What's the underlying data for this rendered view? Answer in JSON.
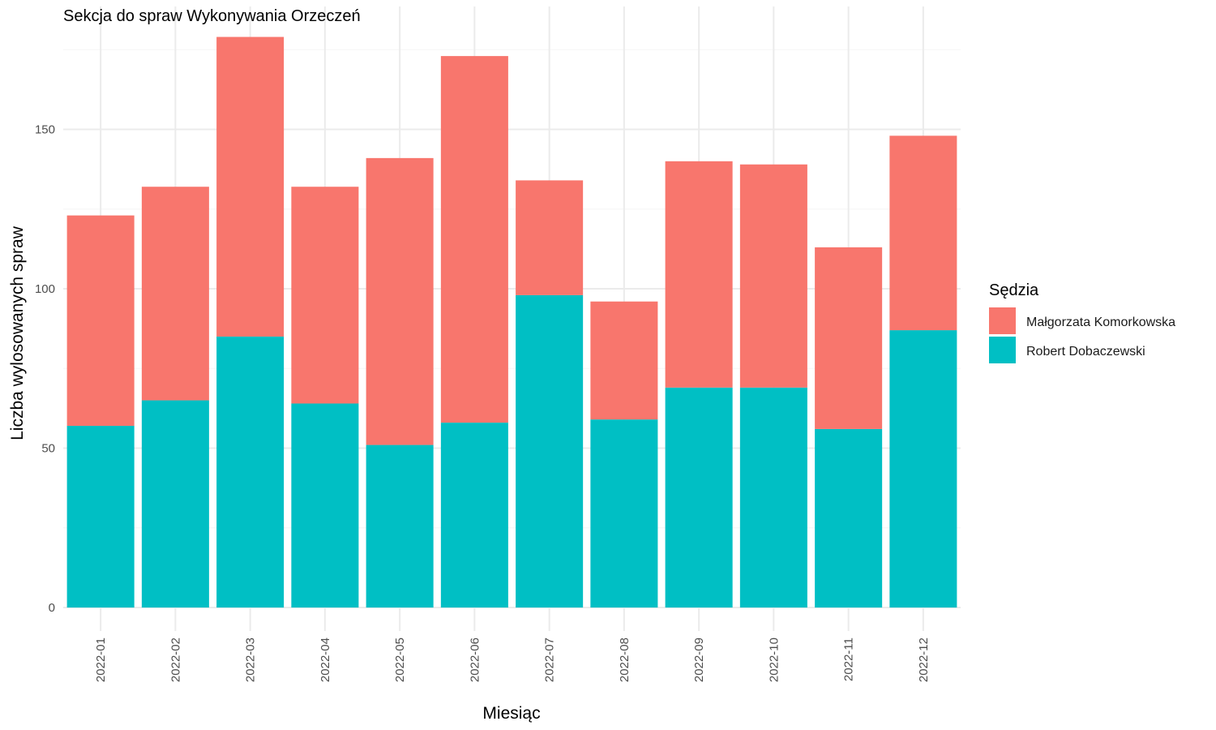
{
  "chart_data": {
    "type": "bar",
    "stacked": true,
    "title": "Sekcja do spraw Wykonywania Orzeczeń",
    "xlabel": "Miesiąc",
    "ylabel": "Liczba wylosowanych spraw",
    "categories": [
      "2022-01",
      "2022-02",
      "2022-03",
      "2022-04",
      "2022-05",
      "2022-06",
      "2022-07",
      "2022-08",
      "2022-09",
      "2022-10",
      "2022-11",
      "2022-12"
    ],
    "series": [
      {
        "name": "Robert Dobaczewski",
        "color": "#00BFC4",
        "values": [
          57,
          65,
          85,
          64,
          51,
          58,
          98,
          59,
          69,
          69,
          56,
          87
        ]
      },
      {
        "name": "Małgorzata Komorkowska",
        "color": "#F8766D",
        "values": [
          66,
          67,
          94,
          68,
          90,
          115,
          36,
          37,
          71,
          70,
          57,
          61
        ]
      }
    ],
    "yticks": [
      "0",
      "50",
      "100",
      "150"
    ],
    "ylim": [
      0,
      180
    ],
    "grid": true,
    "legend": {
      "title": "Sędzia",
      "position": "right",
      "entries": [
        {
          "label": "Małgorzata Komorkowska",
          "color": "#F8766D"
        },
        {
          "label": "Robert Dobaczewski",
          "color": "#00BFC4"
        }
      ]
    }
  }
}
